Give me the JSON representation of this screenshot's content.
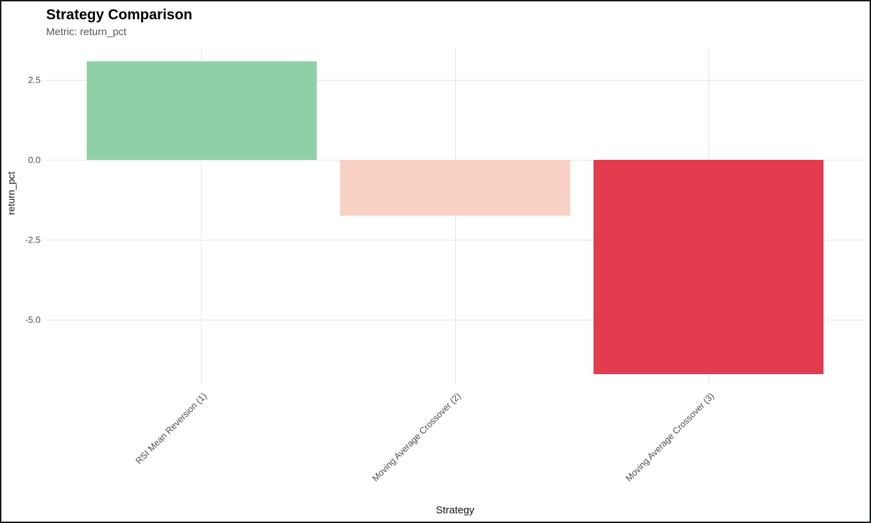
{
  "header": {
    "title": "Strategy Comparison",
    "subtitle": "Metric: return_pct"
  },
  "chart_data": {
    "type": "bar",
    "title": "Strategy Comparison",
    "subtitle": "Metric: return_pct",
    "categories": [
      "RSI Mean Reversion (1)",
      "Moving Average Crossover (2)",
      "Moving Average Crossover (3)"
    ],
    "values": [
      3.1,
      -1.75,
      -6.7
    ],
    "bar_colors": [
      "#8fd0a6",
      "#f8d0c4",
      "#e23c4e"
    ],
    "xlabel": "Strategy",
    "ylabel": "return_pct",
    "ylim": [
      -7.0,
      3.5
    ],
    "yticks": [
      2.5,
      0.0,
      -2.5,
      -5.0
    ],
    "grid": true,
    "legend_position": "none",
    "background": "#ffffff",
    "gridline_color": "#e4e4e4"
  }
}
